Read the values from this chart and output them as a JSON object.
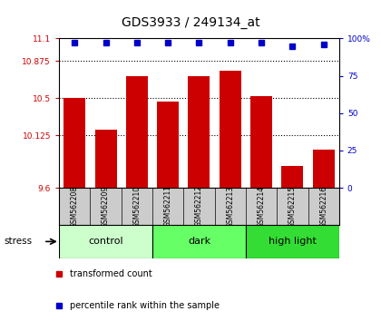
{
  "title": "GDS3933 / 249134_at",
  "samples": [
    "GSM562208",
    "GSM562209",
    "GSM562210",
    "GSM562211",
    "GSM562212",
    "GSM562213",
    "GSM562214",
    "GSM562215",
    "GSM562216"
  ],
  "bar_values": [
    10.5,
    10.18,
    10.72,
    10.47,
    10.72,
    10.78,
    10.52,
    9.82,
    9.98
  ],
  "percentile_values": [
    97,
    97,
    97,
    97,
    97,
    97,
    97,
    95,
    96
  ],
  "ylim": [
    9.6,
    11.1
  ],
  "yticks_left": [
    9.6,
    10.125,
    10.5,
    10.875,
    11.1
  ],
  "ytick_labels_left": [
    "9.6",
    "10.125",
    "10.5",
    "10.875",
    "11.1"
  ],
  "right_yticks": [
    0,
    25,
    50,
    75,
    100
  ],
  "right_ytick_labels": [
    "0",
    "25",
    "50",
    "75",
    "100%"
  ],
  "bar_color": "#cc0000",
  "dot_color": "#0000cc",
  "groups": [
    {
      "label": "control",
      "start": 0,
      "end": 3,
      "color": "#ccffcc"
    },
    {
      "label": "dark",
      "start": 3,
      "end": 6,
      "color": "#66ff66"
    },
    {
      "label": "high light",
      "start": 6,
      "end": 9,
      "color": "#33dd33"
    }
  ],
  "group_row_color": "#cccccc",
  "label_color_left": "#cc0000",
  "label_color_right": "#0000cc",
  "background_color": "#ffffff",
  "legend_red_label": "transformed count",
  "legend_blue_label": "percentile rank within the sample",
  "stress_label": "stress",
  "hgrid_values": [
    10.125,
    10.5,
    10.875
  ],
  "bar_width": 0.7
}
